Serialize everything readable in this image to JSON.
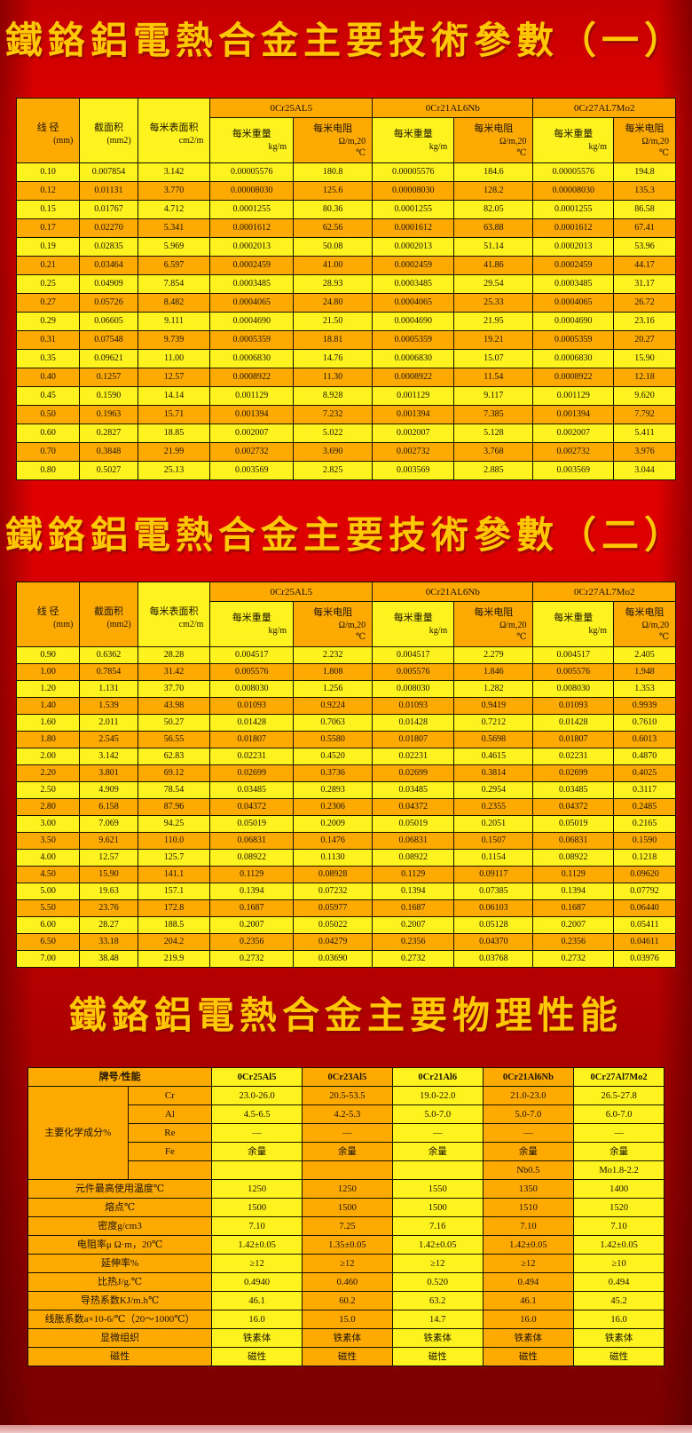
{
  "page": {
    "title1": "鐵鉻鋁電熱合金主要技術參數（一）",
    "title2": "鐵鉻鋁電熱合金主要技術參數（二）",
    "title3": "鐵鉻鋁電熱合金主要物理性能"
  },
  "colors": {
    "background_red": "#d40000",
    "cell_yellow": "#fff31f",
    "cell_orange": "#ffaa00",
    "title_gold": "#ffc800",
    "border": "#141400"
  },
  "tech_header": {
    "diameter_l1": "线 径",
    "diameter_l2": "(mm)",
    "area_l1": "截面积",
    "area_l2": "(mm2)",
    "surface_l1": "每米表面积",
    "surface_l2": "cm2/m",
    "weight_l1": "每米重量",
    "weight_l2": "kg/m",
    "res_l1": "每米电阻",
    "res_l2": "Ω/m,20",
    "res_l3": "℃"
  },
  "chart_data": [
    {
      "type": "table",
      "title": "鐵鉻鋁電熱合金主要技術參數（一）",
      "alloys": [
        "0Cr25AL5",
        "0Cr21AL6Nb",
        "0Cr27AL7Mo2"
      ],
      "columns": [
        "线径(mm)",
        "截面积(mm2)",
        "每米表面积cm2/m",
        "0Cr25AL5 每米重量kg/m",
        "0Cr25AL5 每米电阻Ω/m,20℃",
        "0Cr21AL6Nb 每米重量kg/m",
        "0Cr21AL6Nb 每米电阻Ω/m,20℃",
        "0Cr27AL7Mo2 每米重量kg/m",
        "0Cr27AL7Mo2 每米电阻Ω/m,20℃"
      ],
      "rows": [
        [
          "0.10",
          "0.007854",
          "3.142",
          "0.00005576",
          "180.8",
          "0.00005576",
          "184.6",
          "0.00005576",
          "194.8"
        ],
        [
          "0.12",
          "0.01131",
          "3.770",
          "0.00008030",
          "125.6",
          "0.00008030",
          "128.2",
          "0.00008030",
          "135.3"
        ],
        [
          "0.15",
          "0.01767",
          "4.712",
          "0.0001255",
          "80.36",
          "0.0001255",
          "82.05",
          "0.0001255",
          "86.58"
        ],
        [
          "0.17",
          "0.02270",
          "5.341",
          "0.0001612",
          "62.56",
          "0.0001612",
          "63.88",
          "0.0001612",
          "67.41"
        ],
        [
          "0.19",
          "0.02835",
          "5.969",
          "0.0002013",
          "50.08",
          "0.0002013",
          "51.14",
          "0.0002013",
          "53.96"
        ],
        [
          "0.21",
          "0.03464",
          "6.597",
          "0.0002459",
          "41.00",
          "0.0002459",
          "41.86",
          "0.0002459",
          "44.17"
        ],
        [
          "0.25",
          "0.04909",
          "7.854",
          "0.0003485",
          "28.93",
          "0.0003485",
          "29.54",
          "0.0003485",
          "31.17"
        ],
        [
          "0.27",
          "0.05726",
          "8.482",
          "0.0004065",
          "24.80",
          "0.0004065",
          "25.33",
          "0.0004065",
          "26.72"
        ],
        [
          "0.29",
          "0.06605",
          "9.111",
          "0.0004690",
          "21.50",
          "0.0004690",
          "21.95",
          "0.0004690",
          "23.16"
        ],
        [
          "0.31",
          "0.07548",
          "9.739",
          "0.0005359",
          "18.81",
          "0.0005359",
          "19.21",
          "0.0005359",
          "20.27"
        ],
        [
          "0.35",
          "0.09621",
          "11.00",
          "0.0006830",
          "14.76",
          "0.0006830",
          "15.07",
          "0.0006830",
          "15.90"
        ],
        [
          "0.40",
          "0.1257",
          "12.57",
          "0.0008922",
          "11.30",
          "0.0008922",
          "11.54",
          "0.0008922",
          "12.18"
        ],
        [
          "0.45",
          "0.1590",
          "14.14",
          "0.001129",
          "8.928",
          "0.001129",
          "9.117",
          "0.001129",
          "9.620"
        ],
        [
          "0.50",
          "0.1963",
          "15.71",
          "0.001394",
          "7.232",
          "0.001394",
          "7.385",
          "0.001394",
          "7.792"
        ],
        [
          "0.60",
          "0.2827",
          "18.85",
          "0.002007",
          "5.022",
          "0.002007",
          "5.128",
          "0.002007",
          "5.411"
        ],
        [
          "0.70",
          "0.3848",
          "21.99",
          "0.002732",
          "3.690",
          "0.002732",
          "3.768",
          "0.002732",
          "3.976"
        ],
        [
          "0.80",
          "0.5027",
          "25.13",
          "0.003569",
          "2.825",
          "0.003569",
          "2.885",
          "0.003569",
          "3.044"
        ]
      ]
    },
    {
      "type": "table",
      "title": "鐵鉻鋁電熱合金主要技術參數（二）",
      "alloys": [
        "0Cr25AL5",
        "0Cr21AL6Nb",
        "0Cr27AL7Mo2"
      ],
      "columns": [
        "线径(mm)",
        "截面积(mm2)",
        "每米表面积cm2/m",
        "0Cr25AL5 每米重量kg/m",
        "0Cr25AL5 每米电阻Ω/m,20℃",
        "0Cr21AL6Nb 每米重量kg/m",
        "0Cr21AL6Nb 每米电阻Ω/m,20℃",
        "0Cr27AL7Mo2 每米重量kg/m",
        "0Cr27AL7Mo2 每米电阻Ω/m,20℃"
      ],
      "rows": [
        [
          "0.90",
          "0.6362",
          "28.28",
          "0.004517",
          "2.232",
          "0.004517",
          "2.279",
          "0.004517",
          "2.405"
        ],
        [
          "1.00",
          "0.7854",
          "31.42",
          "0.005576",
          "1.808",
          "0.005576",
          "1.846",
          "0.005576",
          "1.948"
        ],
        [
          "1.20",
          "1.131",
          "37.70",
          "0.008030",
          "1.256",
          "0.008030",
          "1.282",
          "0.008030",
          "1.353"
        ],
        [
          "1.40",
          "1.539",
          "43.98",
          "0.01093",
          "0.9224",
          "0.01093",
          "0.9419",
          "0.01093",
          "0.9939"
        ],
        [
          "1.60",
          "2.011",
          "50.27",
          "0.01428",
          "0.7063",
          "0.01428",
          "0.7212",
          "0.01428",
          "0.7610"
        ],
        [
          "1.80",
          "2.545",
          "56.55",
          "0.01807",
          "0.5580",
          "0.01807",
          "0.5698",
          "0.01807",
          "0.6013"
        ],
        [
          "2.00",
          "3.142",
          "62.83",
          "0.02231",
          "0.4520",
          "0.02231",
          "0.4615",
          "0.02231",
          "0.4870"
        ],
        [
          "2.20",
          "3.801",
          "69.12",
          "0.02699",
          "0.3736",
          "0.02699",
          "0.3814",
          "0.02699",
          "0.4025"
        ],
        [
          "2.50",
          "4.909",
          "78.54",
          "0.03485",
          "0.2893",
          "0.03485",
          "0.2954",
          "0.03485",
          "0.3117"
        ],
        [
          "2.80",
          "6.158",
          "87.96",
          "0.04372",
          "0.2306",
          "0.04372",
          "0.2355",
          "0.04372",
          "0.2485"
        ],
        [
          "3.00",
          "7.069",
          "94.25",
          "0.05019",
          "0.2009",
          "0.05019",
          "0.2051",
          "0.05019",
          "0.2165"
        ],
        [
          "3.50",
          "9.621",
          "110.0",
          "0.06831",
          "0.1476",
          "0.06831",
          "0.1507",
          "0.06831",
          "0.1590"
        ],
        [
          "4.00",
          "12.57",
          "125.7",
          "0.08922",
          "0.1130",
          "0.08922",
          "0.1154",
          "0.08922",
          "0.1218"
        ],
        [
          "4.50",
          "15.90",
          "141.1",
          "0.1129",
          "0.08928",
          "0.1129",
          "0.09117",
          "0.1129",
          "0.09620"
        ],
        [
          "5.00",
          "19.63",
          "157.1",
          "0.1394",
          "0.07232",
          "0.1394",
          "0.07385",
          "0.1394",
          "0.07792"
        ],
        [
          "5.50",
          "23.76",
          "172.8",
          "0.1687",
          "0.05977",
          "0.1687",
          "0.06103",
          "0.1687",
          "0.06440"
        ],
        [
          "6.00",
          "28.27",
          "188.5",
          "0.2007",
          "0.05022",
          "0.2007",
          "0.05128",
          "0.2007",
          "0.05411"
        ],
        [
          "6.50",
          "33.18",
          "204.2",
          "0.2356",
          "0.04279",
          "0.2356",
          "0.04370",
          "0.2356",
          "0.04611"
        ],
        [
          "7.00",
          "38.48",
          "219.9",
          "0.2732",
          "0.03690",
          "0.2732",
          "0.03768",
          "0.2732",
          "0.03976"
        ]
      ]
    },
    {
      "type": "table",
      "title": "鐵鉻鋁電熱合金主要物理性能",
      "header": [
        "牌号/性能",
        "0Cr25Al5",
        "0Cr23Al5",
        "0Cr21Al6",
        "0Cr21Al6Nb",
        "0Cr27Al7Mo2"
      ],
      "chem_group_label": "主要化学成分%",
      "chem_rows": [
        {
          "element": "Cr",
          "values": [
            "23.0-26.0",
            "20.5-53.5",
            "19.0-22.0",
            "21.0-23.0",
            "26.5-27.8"
          ]
        },
        {
          "element": "Al",
          "values": [
            "4.5-6.5",
            "4.2-5.3",
            "5.0-7.0",
            "5.0-7.0",
            "6.0-7.0"
          ]
        },
        {
          "element": "Re",
          "values": [
            "—",
            "—",
            "—",
            "—",
            "—"
          ]
        },
        {
          "element": "Fe",
          "values": [
            "余量",
            "余量",
            "余量",
            "余量",
            "余量"
          ]
        },
        {
          "element": "",
          "values": [
            "",
            "",
            "",
            "Nb0.5",
            "Mo1.8-2.2"
          ]
        }
      ],
      "rows": [
        {
          "label": "元件最高使用温度℃",
          "values": [
            "1250",
            "1250",
            "1550",
            "1350",
            "1400"
          ]
        },
        {
          "label": "熔点℃",
          "values": [
            "1500",
            "1500",
            "1500",
            "1510",
            "1520"
          ]
        },
        {
          "label": "密度g/cm3",
          "values": [
            "7.10",
            "7.25",
            "7.16",
            "7.10",
            "7.10"
          ]
        },
        {
          "label": "电阻率μ Ω·m，20℃",
          "values": [
            "1.42±0.05",
            "1.35±0.05",
            "1.42±0.05",
            "1.42±0.05",
            "1.42±0.05"
          ]
        },
        {
          "label": "延伸率%",
          "values": [
            "≥12",
            "≥12",
            "≥12",
            "≥12",
            "≥10"
          ]
        },
        {
          "label": "比热J/g.℃",
          "values": [
            "0.4940",
            "0.460",
            "0.520",
            "0.494",
            "0.494"
          ]
        },
        {
          "label": "导热系数KJ/m.h℃",
          "values": [
            "46.1",
            "60.2",
            "63.2",
            "46.1",
            "45.2"
          ]
        },
        {
          "label": "线胀系数a×10-6/℃（20～1000℃）",
          "values": [
            "16.0",
            "15.0",
            "14.7",
            "16.0",
            "16.0"
          ]
        },
        {
          "label": "显微组织",
          "values": [
            "铁素体",
            "铁素体",
            "铁素体",
            "铁素体",
            "铁素体"
          ]
        },
        {
          "label": "磁性",
          "values": [
            "磁性",
            "磁性",
            "磁性",
            "磁性",
            "磁性"
          ]
        }
      ]
    }
  ]
}
